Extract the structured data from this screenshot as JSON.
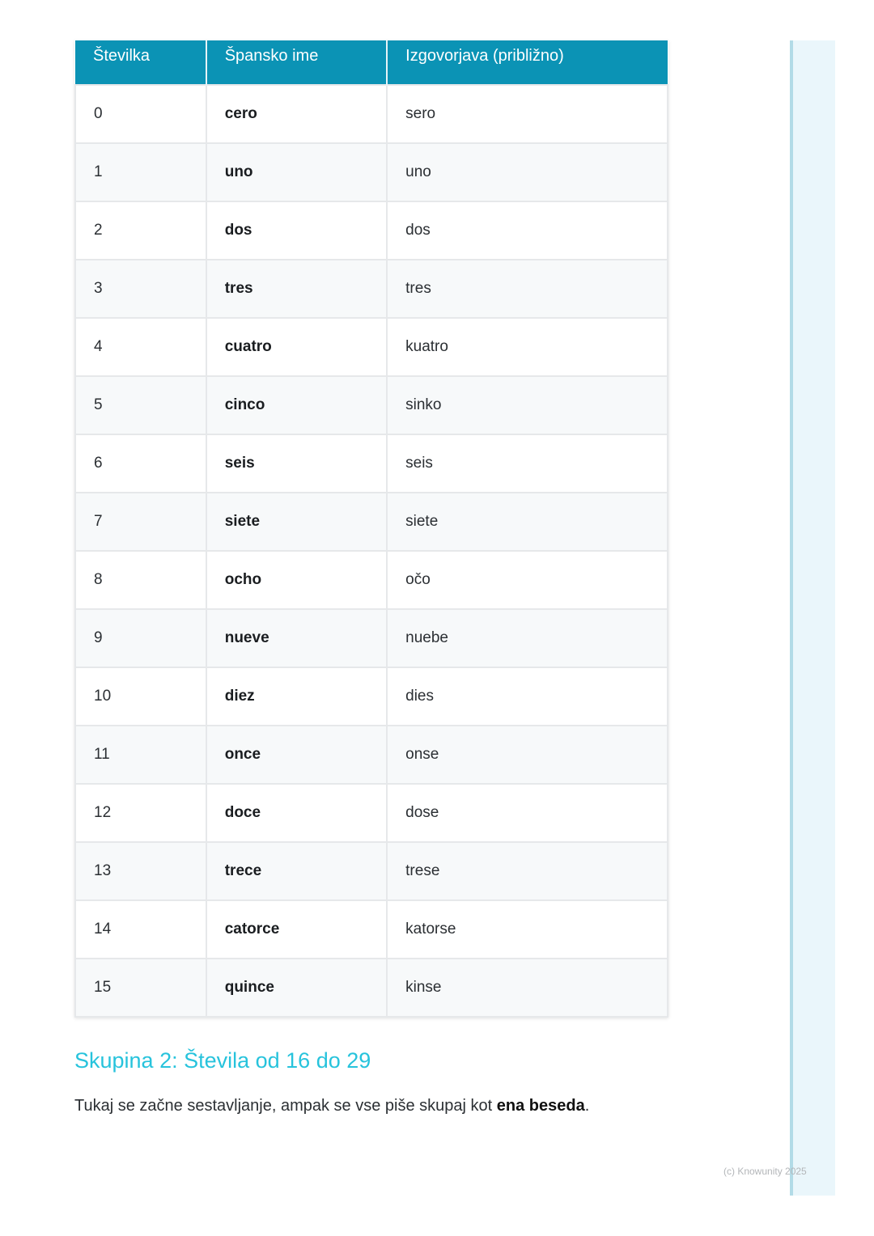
{
  "table": {
    "headers": [
      "Številka",
      "Špansko ime",
      "Izgovorjava (približno)"
    ],
    "rows": [
      [
        "0",
        "cero",
        "sero"
      ],
      [
        "1",
        "uno",
        "uno"
      ],
      [
        "2",
        "dos",
        "dos"
      ],
      [
        "3",
        "tres",
        "tres"
      ],
      [
        "4",
        "cuatro",
        "kuatro"
      ],
      [
        "5",
        "cinco",
        "sinko"
      ],
      [
        "6",
        "seis",
        "seis"
      ],
      [
        "7",
        "siete",
        "siete"
      ],
      [
        "8",
        "ocho",
        "očo"
      ],
      [
        "9",
        "nueve",
        "nuebe"
      ],
      [
        "10",
        "diez",
        "dies"
      ],
      [
        "11",
        "once",
        "onse"
      ],
      [
        "12",
        "doce",
        "dose"
      ],
      [
        "13",
        "trece",
        "trese"
      ],
      [
        "14",
        "catorce",
        "katorse"
      ],
      [
        "15",
        "quince",
        "kinse"
      ]
    ]
  },
  "section": {
    "heading": "Skupina 2: Števila od 16 do 29",
    "text_before": "Tukaj se začne sestavljanje, ampak se vse piše skupaj kot ",
    "text_bold": "ena beseda",
    "text_after": "."
  },
  "footer": "(c) Knowunity 2025",
  "colors": {
    "header_bg": "#0b93b5",
    "heading": "#27c3dc",
    "sidebar": "#eaf6fb"
  }
}
